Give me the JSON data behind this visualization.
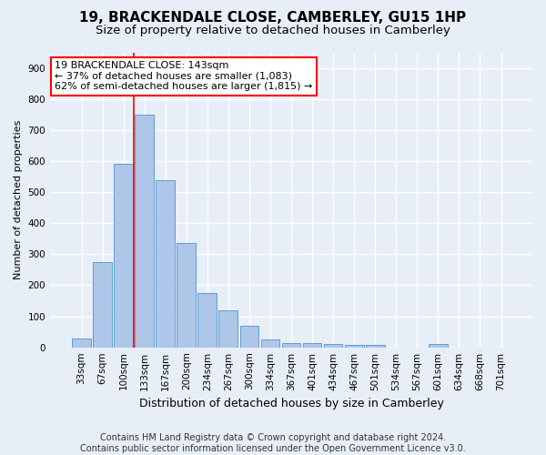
{
  "title": "19, BRACKENDALE CLOSE, CAMBERLEY, GU15 1HP",
  "subtitle": "Size of property relative to detached houses in Camberley",
  "xlabel": "Distribution of detached houses by size in Camberley",
  "ylabel": "Number of detached properties",
  "categories": [
    "33sqm",
    "67sqm",
    "100sqm",
    "133sqm",
    "167sqm",
    "200sqm",
    "234sqm",
    "267sqm",
    "300sqm",
    "334sqm",
    "367sqm",
    "401sqm",
    "434sqm",
    "467sqm",
    "501sqm",
    "534sqm",
    "567sqm",
    "601sqm",
    "634sqm",
    "668sqm",
    "701sqm"
  ],
  "bar_heights": [
    27,
    275,
    592,
    748,
    537,
    335,
    175,
    120,
    68,
    25,
    14,
    13,
    10,
    9,
    9,
    0,
    0,
    10,
    0,
    0,
    0
  ],
  "bar_color": "#aec6e8",
  "bar_edge_color": "#5a9fd4",
  "vline_color": "red",
  "vline_x_index": 3,
  "annotation_text": "19 BRACKENDALE CLOSE: 143sqm\n← 37% of detached houses are smaller (1,083)\n62% of semi-detached houses are larger (1,815) →",
  "annotation_box_color": "white",
  "annotation_box_edge_color": "red",
  "ylim": [
    0,
    950
  ],
  "yticks": [
    0,
    100,
    200,
    300,
    400,
    500,
    600,
    700,
    800,
    900
  ],
  "footer": "Contains HM Land Registry data © Crown copyright and database right 2024.\nContains public sector information licensed under the Open Government Licence v3.0.",
  "background_color": "#e8eef8",
  "plot_bg_color": "#e8eef8",
  "grid_color": "white",
  "title_fontsize": 11,
  "subtitle_fontsize": 9.5,
  "xlabel_fontsize": 9,
  "ylabel_fontsize": 8,
  "footer_fontsize": 7,
  "annotation_fontsize": 8,
  "tick_fontsize": 7.5
}
